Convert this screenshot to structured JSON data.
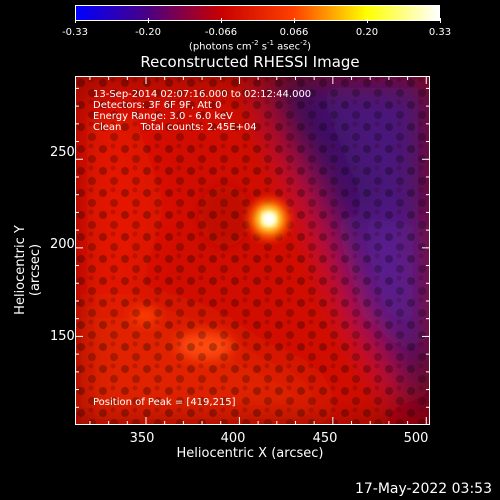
{
  "colorbar": {
    "ticks": [
      "-0.33",
      "-0.20",
      "-0.066",
      "0.066",
      "0.20",
      "0.33"
    ],
    "units_prefix": "(photons cm",
    "units_exp1": "-2",
    "units_mid": " s",
    "units_exp2": "-1",
    "units_mid2": " asec",
    "units_exp3": "-2",
    "units_suffix": ")",
    "colors": [
      "#0000ff",
      "#4b0082",
      "#c80000",
      "#ff4000",
      "#ffff00",
      "#ffffff"
    ]
  },
  "title": "Reconstructed RHESSI Image",
  "info": {
    "line1": "13-Sep-2014 02:07:16.000 to 02:12:44.000",
    "line2": "Detectors: 3F 6F 9F, Att 0",
    "line3": "Energy Range: 3.0 - 6.0 keV",
    "line4": "Clean      Total counts: 2.45E+04",
    "peak": "Position of Peak = [419,215]"
  },
  "axes": {
    "xlabel": "Heliocentric X (arcsec)",
    "ylabel": "Heliocentric Y (arcsec)",
    "xticks": [
      "350",
      "400",
      "450",
      "500"
    ],
    "yticks": [
      "250",
      "200",
      "150"
    ],
    "xlim": [
      312,
      502
    ],
    "ylim": [
      100,
      297
    ]
  },
  "peak_position": [
    419,
    215
  ],
  "timestamp": "17-May-2022 03:53"
}
